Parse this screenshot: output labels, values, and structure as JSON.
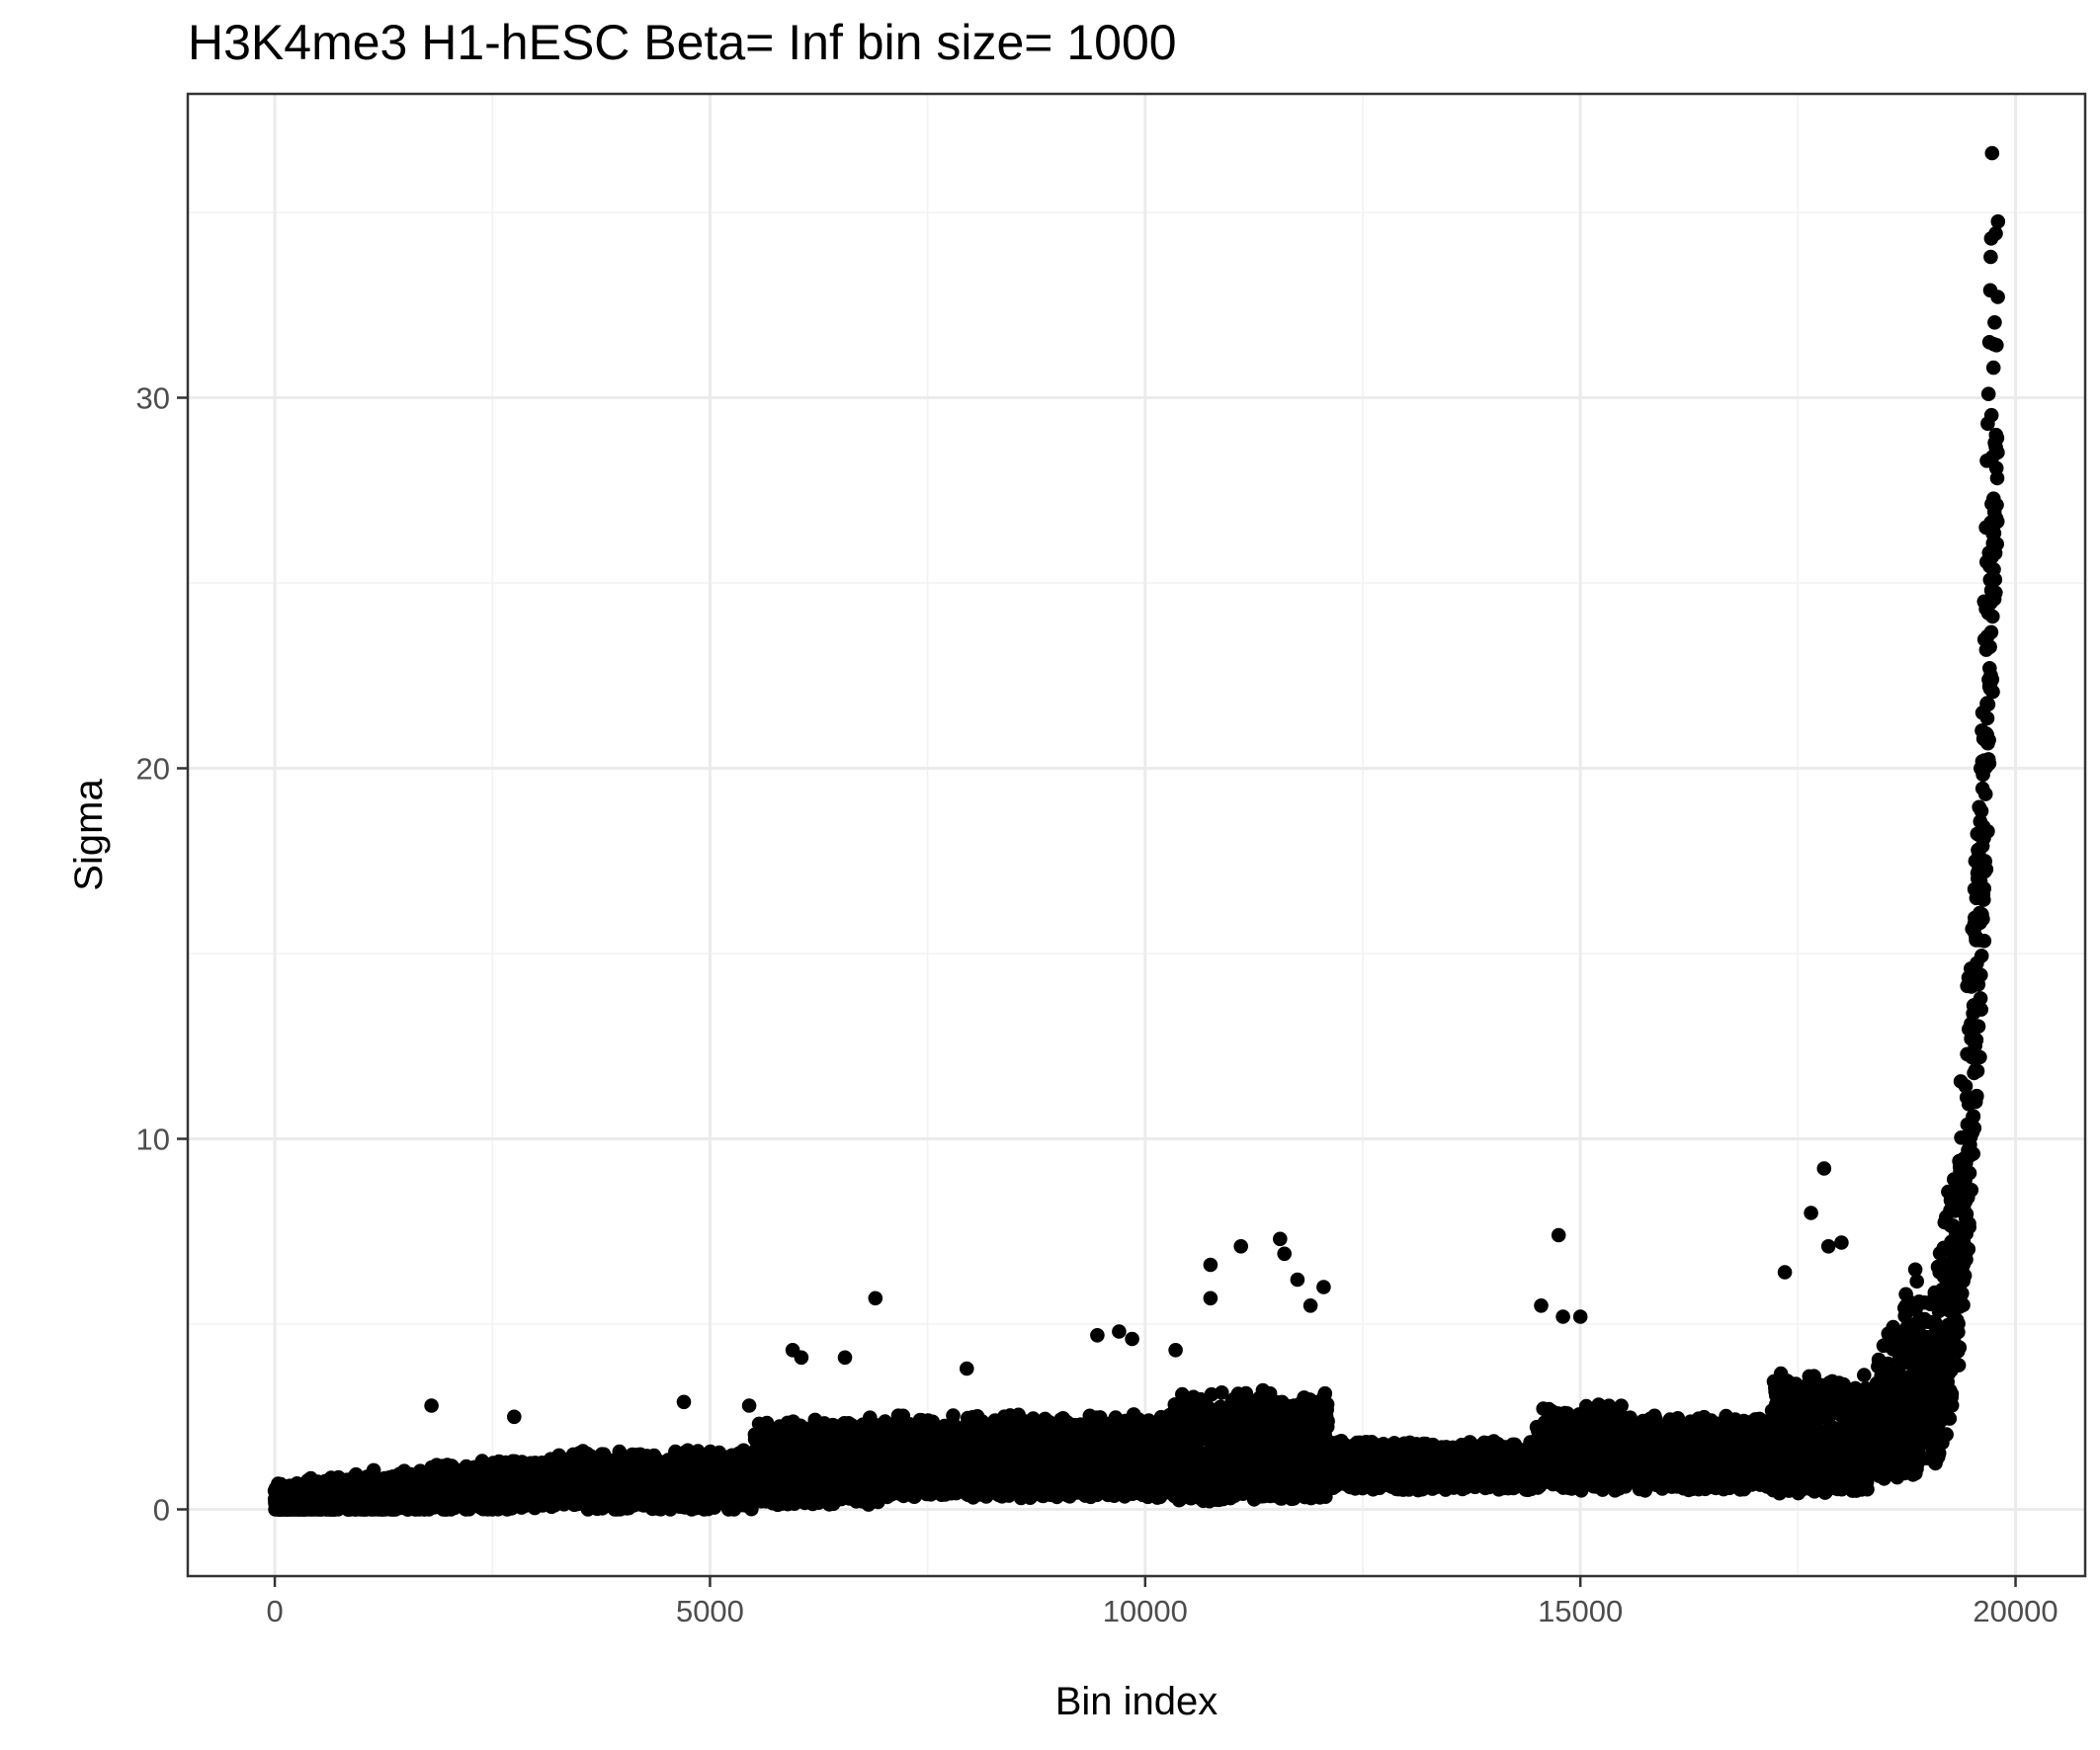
{
  "chart_data": {
    "type": "scatter",
    "title": "H3K4me3 H1-hESC  Beta=  Inf  bin size=  1000",
    "xlabel": "Bin index",
    "ylabel": "Sigma",
    "xlim": [
      -1000,
      20800
    ],
    "ylim": [
      -1.8,
      38.2
    ],
    "x_ticks": [
      0,
      5000,
      10000,
      15000,
      20000
    ],
    "x_tick_labels": [
      "0",
      "5000",
      "10000",
      "15000",
      "20000"
    ],
    "y_ticks": [
      0,
      10,
      20,
      30
    ],
    "y_tick_labels": [
      "0",
      "10",
      "20",
      "30"
    ],
    "x_minor_ticks": [
      2500,
      7500,
      12500,
      17500
    ],
    "y_minor_ticks": [
      5,
      15,
      25,
      35
    ],
    "grid": true,
    "legend": "none",
    "point_color": "#000000",
    "n_points": 19800,
    "series": [
      {
        "points": [
          [
            1800,
            2.8
          ],
          [
            2750,
            2.5
          ],
          [
            4700,
            2.9
          ],
          [
            5450,
            2.8
          ],
          [
            5950,
            4.3
          ],
          [
            6050,
            4.1
          ],
          [
            6550,
            4.1
          ],
          [
            6900,
            5.7
          ],
          [
            7950,
            3.8
          ],
          [
            9450,
            4.7
          ],
          [
            9700,
            4.8
          ],
          [
            9850,
            4.6
          ],
          [
            10350,
            4.3
          ],
          [
            10750,
            6.6
          ],
          [
            10750,
            5.7
          ],
          [
            11100,
            7.1
          ],
          [
            11550,
            7.3
          ],
          [
            11600,
            6.9
          ],
          [
            11750,
            6.2
          ],
          [
            11900,
            5.5
          ],
          [
            12050,
            6.0
          ],
          [
            14550,
            5.5
          ],
          [
            14750,
            7.4
          ],
          [
            14800,
            5.2
          ],
          [
            15000,
            5.2
          ],
          [
            17350,
            6.4
          ],
          [
            17650,
            8.0
          ],
          [
            17800,
            9.2
          ],
          [
            17850,
            7.1
          ],
          [
            18000,
            7.2
          ],
          [
            19500,
            13.0
          ],
          [
            19550,
            16.5
          ],
          [
            19580,
            18.2
          ],
          [
            19600,
            20.0
          ],
          [
            19620,
            21.5
          ],
          [
            19640,
            24.5
          ],
          [
            19660,
            26.5
          ],
          [
            19670,
            28.3
          ],
          [
            19680,
            29.3
          ],
          [
            19690,
            30.1
          ],
          [
            19700,
            31.5
          ],
          [
            19710,
            32.9
          ],
          [
            19715,
            33.8
          ],
          [
            19720,
            34.3
          ],
          [
            19730,
            36.6
          ]
        ]
      }
    ]
  }
}
